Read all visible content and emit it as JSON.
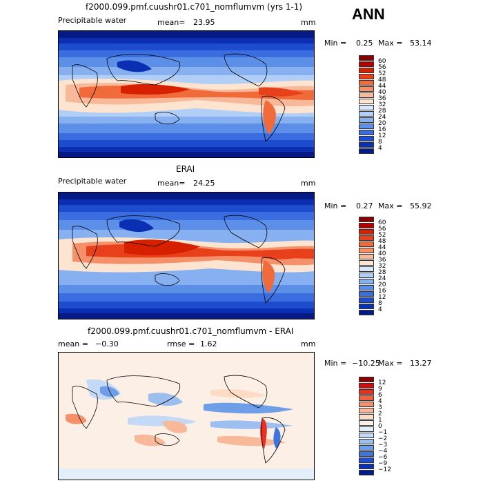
{
  "season": "ANN",
  "panels": [
    {
      "title": "f2000.099.pmf.cuushr01.c701_nomflumvm (yrs 1-1)",
      "left_label": "Precipitable water",
      "mean_label": "mean=",
      "mean_value": "23.95",
      "units": "mm",
      "min_label": "Min =",
      "min_value": "0.25",
      "max_label": "Max =",
      "max_value": "53.14",
      "colorbar": {
        "levels": [
          "60",
          "56",
          "52",
          "48",
          "44",
          "40",
          "36",
          "32",
          "28",
          "24",
          "20",
          "16",
          "12",
          "8",
          "4"
        ],
        "colors": [
          "#8b0000",
          "#b00000",
          "#d62000",
          "#e8401a",
          "#f06a3a",
          "#f4906a",
          "#f8b99a",
          "#fce4d0",
          "#d8e8fa",
          "#b0cef6",
          "#86b0f0",
          "#5b8fe8",
          "#3a6ee0",
          "#1e4ccf",
          "#0b2fb2",
          "#061a85"
        ]
      }
    },
    {
      "title": "ERAI",
      "left_label": "Precipitable water",
      "mean_label": "mean=",
      "mean_value": "24.25",
      "units": "mm",
      "min_label": "Min =",
      "min_value": "0.27",
      "max_label": "Max =",
      "max_value": "55.92",
      "colorbar": {
        "levels": [
          "60",
          "56",
          "52",
          "48",
          "44",
          "40",
          "36",
          "32",
          "28",
          "24",
          "20",
          "16",
          "12",
          "8",
          "4"
        ],
        "colors": [
          "#8b0000",
          "#b00000",
          "#d62000",
          "#e8401a",
          "#f06a3a",
          "#f4906a",
          "#f8b99a",
          "#fce4d0",
          "#d8e8fa",
          "#b0cef6",
          "#86b0f0",
          "#5b8fe8",
          "#3a6ee0",
          "#1e4ccf",
          "#0b2fb2",
          "#061a85"
        ]
      }
    },
    {
      "title": "f2000.099.pmf.cuushr01.c701_nomflumvm - ERAI",
      "mean_label": "mean =",
      "mean_value": "−0.30",
      "rmse_label": "rmse =",
      "rmse_value": "1.62",
      "units": "mm",
      "min_label": "Min =",
      "min_value": "−10.25",
      "max_label": "Max =",
      "max_value": "13.27",
      "colorbar": {
        "levels": [
          "12",
          "9",
          "6",
          "4",
          "3",
          "2",
          "1",
          "0",
          "−1",
          "−2",
          "−3",
          "−4",
          "−6",
          "−9",
          "−12"
        ],
        "colors": [
          "#8b0000",
          "#c81010",
          "#e83020",
          "#f06040",
          "#f4906a",
          "#f8b99a",
          "#fcdcc4",
          "#fcefe6",
          "#e3eefb",
          "#c4d9f6",
          "#9dbff0",
          "#6f9ee8",
          "#3e74dc",
          "#1e4ccf",
          "#0b2fb2",
          "#061a85"
        ]
      }
    }
  ],
  "chart_data": [
    {
      "type": "heatmap",
      "title": "f2000.099.pmf.cuushr01.c701_nomflumvm (yrs 1-1)",
      "variable": "Precipitable water",
      "units": "mm",
      "mean": 23.95,
      "min": 0.25,
      "max": 53.14,
      "contour_levels": [
        4,
        8,
        12,
        16,
        20,
        24,
        28,
        32,
        36,
        40,
        44,
        48,
        52,
        56,
        60
      ]
    },
    {
      "type": "heatmap",
      "title": "ERAI",
      "variable": "Precipitable water",
      "units": "mm",
      "mean": 24.25,
      "min": 0.27,
      "max": 55.92,
      "contour_levels": [
        4,
        8,
        12,
        16,
        20,
        24,
        28,
        32,
        36,
        40,
        44,
        48,
        52,
        56,
        60
      ]
    },
    {
      "type": "heatmap",
      "title": "f2000.099.pmf.cuushr01.c701_nomflumvm - ERAI",
      "units": "mm",
      "mean": -0.3,
      "rmse": 1.62,
      "min": -10.25,
      "max": 13.27,
      "contour_levels": [
        -12,
        -9,
        -6,
        -4,
        -3,
        -2,
        -1,
        0,
        1,
        2,
        3,
        4,
        6,
        9,
        12
      ]
    }
  ]
}
